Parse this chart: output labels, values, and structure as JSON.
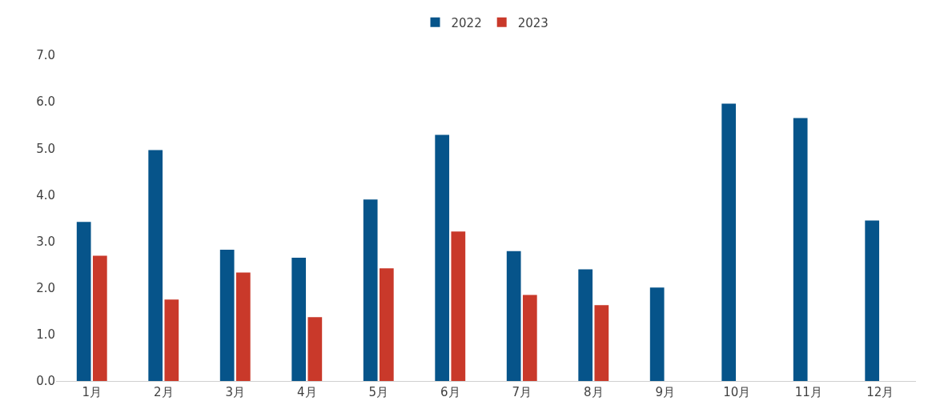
{
  "chart_data": {
    "type": "bar",
    "categories": [
      "1月",
      "2月",
      "3月",
      "4月",
      "5月",
      "6月",
      "7月",
      "8月",
      "9月",
      "10月",
      "11月",
      "12月"
    ],
    "series": [
      {
        "name": "2022",
        "color": "#06548a",
        "values": [
          3.42,
          4.96,
          2.82,
          2.65,
          3.9,
          5.29,
          2.79,
          2.4,
          2.01,
          5.96,
          5.65,
          3.45
        ]
      },
      {
        "name": "2023",
        "color": "#c9392a",
        "values": [
          2.69,
          1.75,
          2.33,
          1.37,
          2.42,
          3.21,
          1.85,
          1.63,
          null,
          null,
          null,
          null
        ]
      }
    ],
    "ylim": [
      0,
      7
    ],
    "yticks": [
      {
        "value": 0,
        "label": "0.0"
      },
      {
        "value": 1,
        "label": "1.0"
      },
      {
        "value": 2,
        "label": "2.0"
      },
      {
        "value": 3,
        "label": "3.0"
      },
      {
        "value": 4,
        "label": "4.0"
      },
      {
        "value": 5,
        "label": "5.0"
      },
      {
        "value": 6,
        "label": "6.0"
      },
      {
        "value": 7,
        "label": "7.0"
      }
    ],
    "legend": "top"
  }
}
